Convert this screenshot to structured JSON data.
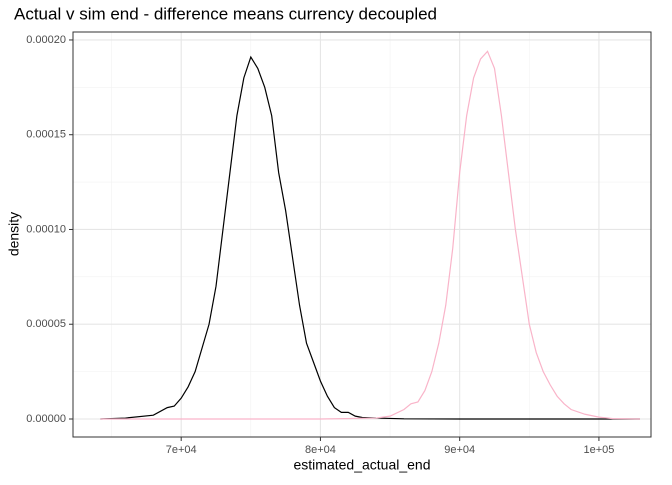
{
  "chart_data": {
    "type": "line",
    "title": "Actual v sim end - difference means currency decoupled",
    "x_label": "estimated_actual_end",
    "y_label": "density",
    "xlim": [
      62230,
      103740
    ],
    "ylim": [
      -9.5e-06,
      0.0002042
    ],
    "xticks": [
      {
        "value": 70000,
        "label": "7e+04"
      },
      {
        "value": 80000,
        "label": "8e+04"
      },
      {
        "value": 90000,
        "label": "9e+04"
      },
      {
        "value": 100000,
        "label": "1e+05"
      }
    ],
    "yticks": [
      {
        "value": 0,
        "label": "0.00000"
      },
      {
        "value": 5e-05,
        "label": "0.00005"
      },
      {
        "value": 0.0001,
        "label": "0.00010"
      },
      {
        "value": 0.00015,
        "label": "0.00015"
      },
      {
        "value": 0.0002,
        "label": "0.00020"
      }
    ],
    "x_minor_grid": [
      65000,
      75000,
      85000,
      95000
    ],
    "y_minor_grid": [
      2.5e-05,
      7.5e-05,
      0.000125,
      0.000175
    ],
    "grid": true,
    "series": [
      {
        "color": "#000000",
        "x": [
          64200,
          66000,
          68000,
          69000,
          69500,
          70000,
          70500,
          71000,
          72000,
          72500,
          73000,
          73500,
          74000,
          74500,
          75000,
          75500,
          76000,
          76500,
          77000,
          77500,
          78000,
          78500,
          79000,
          79500,
          80000,
          80500,
          81000,
          81500,
          82000,
          82500,
          83000,
          84000,
          86000,
          90000,
          95000,
          102950
        ],
        "values": [
          0,
          5e-07,
          2e-06,
          6e-06,
          6.8e-06,
          1.1e-05,
          1.7e-05,
          2.5e-05,
          5e-05,
          7e-05,
          0.0001,
          0.00013,
          0.00016,
          0.00018,
          0.000191,
          0.000185,
          0.000175,
          0.00016,
          0.00013,
          0.00011,
          8.5e-05,
          6e-05,
          4e-05,
          3e-05,
          2e-05,
          1.2e-05,
          6e-06,
          3.5e-06,
          3.5e-06,
          1.5e-06,
          8e-07,
          5e-07,
          1e-07,
          0,
          0,
          0
        ]
      },
      {
        "color": "#f9b4c9",
        "x": [
          64200,
          80000,
          84000,
          85000,
          86000,
          86500,
          87000,
          87500,
          88000,
          88500,
          89000,
          89500,
          90000,
          90500,
          91000,
          91500,
          92000,
          92500,
          93000,
          93500,
          94000,
          94500,
          95000,
          95500,
          96000,
          96500,
          97000,
          97500,
          98000,
          99000,
          100000,
          101000,
          102950
        ],
        "values": [
          0,
          0,
          5e-07,
          1.5e-06,
          5e-06,
          8e-06,
          9e-06,
          1.5e-05,
          2.5e-05,
          4e-05,
          6e-05,
          9e-05,
          0.00013,
          0.00016,
          0.00018,
          0.00019,
          0.000194,
          0.000185,
          0.00016,
          0.00013,
          0.0001,
          7.5e-05,
          5e-05,
          3.5e-05,
          2.5e-05,
          1.8e-05,
          1.2e-05,
          8e-06,
          5e-06,
          2.5e-06,
          1e-06,
          2e-07,
          0
        ]
      }
    ]
  }
}
